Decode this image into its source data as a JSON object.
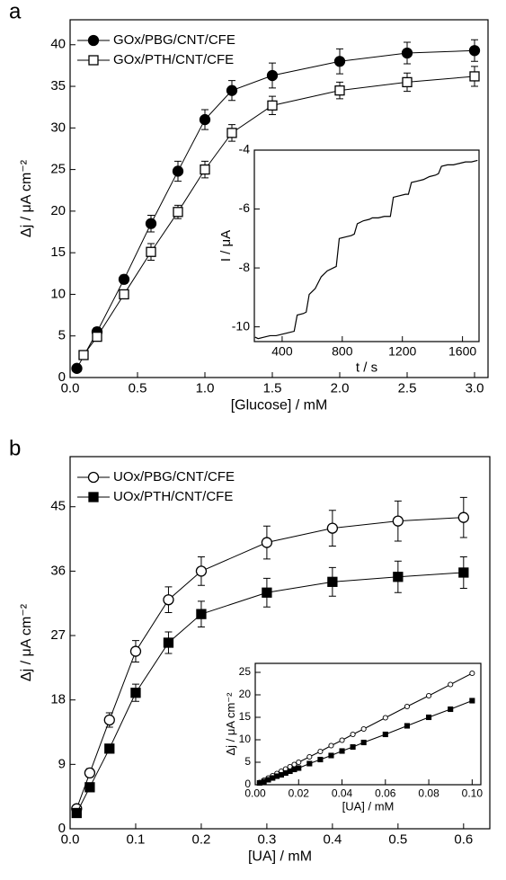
{
  "chart_data": [
    {
      "type": "line",
      "panel_label": "a",
      "xlabel": "[Glucose] / mM",
      "ylabel": "Δj / μA cm⁻²",
      "xlim": [
        0,
        3.1
      ],
      "ylim": [
        0,
        43
      ],
      "xticks": [
        {
          "value": 0,
          "label": "0.0"
        },
        {
          "value": 0.5,
          "label": "0.5"
        },
        {
          "value": 1,
          "label": "1.0"
        },
        {
          "value": 1.5,
          "label": "1.5"
        },
        {
          "value": 2,
          "label": "2.0"
        },
        {
          "value": 2.5,
          "label": "2.5"
        },
        {
          "value": 3,
          "label": "3.0"
        }
      ],
      "yticks": [
        0,
        5,
        10,
        15,
        20,
        25,
        30,
        35,
        40
      ],
      "legend": "upper left",
      "series": [
        {
          "name": "GOx/PBG/CNT/CFE",
          "color": "#000000",
          "marker": "circle",
          "filled": true,
          "x": [
            0.05,
            0.2,
            0.4,
            0.6,
            0.8,
            1.0,
            1.2,
            1.5,
            2.0,
            2.5,
            3.0
          ],
          "values": [
            1.1,
            5.5,
            11.8,
            18.5,
            24.8,
            31,
            34.5,
            36.3,
            38,
            39,
            39.3
          ],
          "errors": [
            0.3,
            0.5,
            0.5,
            1,
            1.2,
            1.2,
            1.2,
            1.5,
            1.5,
            1.3,
            1.3
          ]
        },
        {
          "name": "GOx/PTH/CNT/CFE",
          "color": "#000000",
          "marker": "square",
          "filled": false,
          "x": [
            0.1,
            0.2,
            0.4,
            0.6,
            0.8,
            1.0,
            1.2,
            1.5,
            2.0,
            2.5,
            3.0
          ],
          "values": [
            2.7,
            4.9,
            10,
            15.1,
            19.9,
            25,
            29.4,
            32.7,
            34.5,
            35.5,
            36.2
          ],
          "errors": [
            0.4,
            0.5,
            0.5,
            1,
            0.8,
            1,
            1,
            1.1,
            1,
            1.1,
            1.2
          ]
        }
      ]
    },
    {
      "type": "line",
      "xlabel": "t / s",
      "ylabel": "I / μA",
      "xlim": [
        215,
        1710
      ],
      "ylim": [
        -10.5,
        -4
      ],
      "xticks": [
        400,
        800,
        1200,
        1600
      ],
      "yticks": [
        -10,
        -8,
        -6,
        -4
      ],
      "series": [
        {
          "color": "#000000",
          "marker": "none",
          "filled": false,
          "x": [
            220,
            240,
            280,
            320,
            360,
            400,
            440,
            480,
            500,
            540,
            560,
            580,
            620,
            660,
            700,
            740,
            760,
            780,
            820,
            860,
            880,
            900,
            940,
            980,
            1000,
            1040,
            1080,
            1120,
            1140,
            1180,
            1220,
            1240,
            1260,
            1300,
            1340,
            1380,
            1420,
            1440,
            1460,
            1500,
            1540,
            1580,
            1620,
            1660,
            1700
          ],
          "values": [
            -10.35,
            -10.4,
            -10.35,
            -10.3,
            -10.3,
            -10.25,
            -10.2,
            -10.15,
            -9.6,
            -9.55,
            -9.5,
            -8.9,
            -8.7,
            -8.3,
            -8.1,
            -8.0,
            -7.95,
            -7.0,
            -6.95,
            -6.9,
            -6.85,
            -6.5,
            -6.4,
            -6.35,
            -6.3,
            -6.3,
            -6.25,
            -6.25,
            -5.6,
            -5.55,
            -5.5,
            -5.5,
            -5.1,
            -5.05,
            -5.0,
            -4.9,
            -4.85,
            -4.8,
            -4.55,
            -4.5,
            -4.5,
            -4.45,
            -4.4,
            -4.4,
            -4.35
          ]
        }
      ]
    },
    {
      "type": "line",
      "panel_label": "b",
      "xlabel": "[UA] / mM",
      "ylabel": "Δj / μA cm⁻²",
      "xlim": [
        0,
        0.64
      ],
      "ylim": [
        0,
        52
      ],
      "xticks": [
        {
          "value": 0,
          "label": "0.0"
        },
        {
          "value": 0.1,
          "label": "0.1"
        },
        {
          "value": 0.2,
          "label": "0.2"
        },
        {
          "value": 0.3,
          "label": "0.3"
        },
        {
          "value": 0.4,
          "label": "0.4"
        },
        {
          "value": 0.5,
          "label": "0.5"
        },
        {
          "value": 0.6,
          "label": "0.6"
        }
      ],
      "yticks": [
        0,
        9,
        18,
        27,
        36,
        45
      ],
      "legend": "upper left",
      "series": [
        {
          "name": "UOx/PBG/CNT/CFE",
          "color": "#000000",
          "marker": "circle",
          "filled": false,
          "x": [
            0.01,
            0.03,
            0.06,
            0.1,
            0.15,
            0.2,
            0.3,
            0.4,
            0.5,
            0.6
          ],
          "values": [
            2.8,
            7.8,
            15.2,
            24.8,
            32,
            36,
            40,
            42,
            43,
            43.5
          ],
          "errors": [
            0.3,
            0.6,
            1,
            1.5,
            1.8,
            2,
            2.3,
            2.5,
            2.8,
            2.8
          ]
        },
        {
          "name": "UOx/PTH/CNT/CFE",
          "color": "#000000",
          "marker": "square",
          "filled": true,
          "x": [
            0.01,
            0.03,
            0.06,
            0.1,
            0.15,
            0.2,
            0.3,
            0.4,
            0.5,
            0.6
          ],
          "values": [
            2.2,
            5.8,
            11.2,
            19,
            26,
            30,
            33,
            34.5,
            35.2,
            35.8
          ],
          "errors": [
            0.3,
            0.5,
            0.6,
            1.2,
            1.5,
            1.8,
            2,
            2,
            2.2,
            2.2
          ]
        }
      ]
    },
    {
      "type": "line",
      "xlabel": "[UA] / mM",
      "ylabel": "Δj / μA cm⁻²",
      "xlim": [
        0,
        0.104
      ],
      "ylim": [
        0,
        27
      ],
      "xticks": [
        {
          "value": 0,
          "label": "0.00"
        },
        {
          "value": 0.02,
          "label": "0.02"
        },
        {
          "value": 0.04,
          "label": "0.04"
        },
        {
          "value": 0.06,
          "label": "0.06"
        },
        {
          "value": 0.08,
          "label": "0.08"
        },
        {
          "value": 0.1,
          "label": "0.10"
        }
      ],
      "yticks": [
        0,
        5,
        10,
        15,
        20,
        25
      ],
      "series": [
        {
          "color": "#000000",
          "marker": "circle",
          "filled": false,
          "small": true,
          "x": [
            0.002,
            0.004,
            0.006,
            0.008,
            0.01,
            0.012,
            0.014,
            0.016,
            0.018,
            0.02,
            0.025,
            0.03,
            0.035,
            0.04,
            0.045,
            0.05,
            0.06,
            0.07,
            0.08,
            0.09,
            0.1
          ],
          "values": [
            0.5,
            1.0,
            1.5,
            2.0,
            2.5,
            3.0,
            3.5,
            4.0,
            4.5,
            5.0,
            6.2,
            7.4,
            8.7,
            9.9,
            11.2,
            12.4,
            14.9,
            17.4,
            19.8,
            22.3,
            24.8
          ]
        },
        {
          "color": "#000000",
          "marker": "square",
          "filled": true,
          "small": true,
          "x": [
            0.002,
            0.004,
            0.006,
            0.008,
            0.01,
            0.012,
            0.014,
            0.016,
            0.018,
            0.02,
            0.025,
            0.03,
            0.035,
            0.04,
            0.045,
            0.05,
            0.06,
            0.07,
            0.08,
            0.09,
            0.1
          ],
          "values": [
            0.4,
            0.7,
            1.1,
            1.5,
            1.9,
            2.2,
            2.6,
            3.0,
            3.4,
            3.7,
            4.7,
            5.6,
            6.5,
            7.5,
            8.4,
            9.4,
            11.2,
            13.1,
            15.0,
            16.8,
            18.7
          ]
        }
      ]
    }
  ]
}
